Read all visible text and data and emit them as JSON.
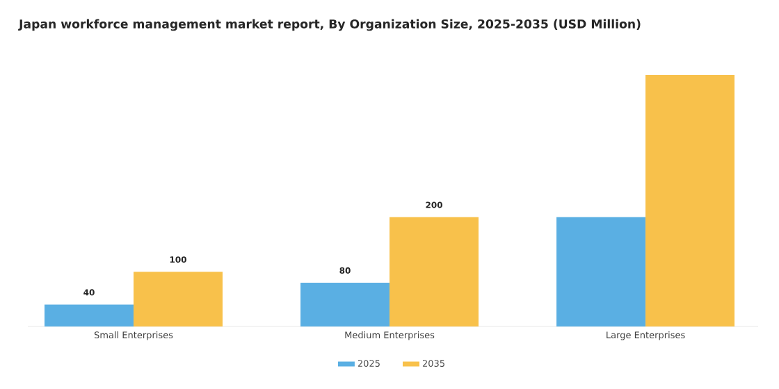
{
  "chart_data": {
    "type": "bar",
    "title": "Japan workforce management market report, By Organization Size, 2025-2035 (USD Million)",
    "categories": [
      "Small Enterprises",
      "Medium Enterprises",
      "Large Enterprises"
    ],
    "series": [
      {
        "name": "2025",
        "color": "#5aafe3",
        "values": [
          40,
          80,
          200
        ],
        "value_labels": [
          "40",
          "80",
          null
        ]
      },
      {
        "name": "2035",
        "color": "#f8c14b",
        "values": [
          100,
          200,
          460
        ],
        "value_labels": [
          "100",
          "200",
          null
        ]
      }
    ],
    "legend": "bottom"
  }
}
